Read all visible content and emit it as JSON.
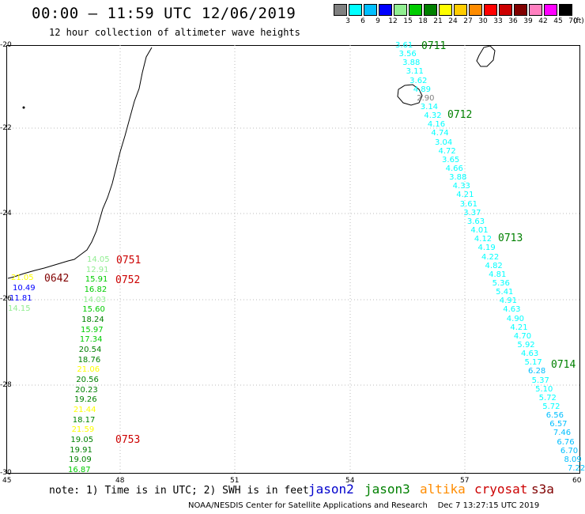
{
  "header": {
    "title": "00:00 – 11:59 UTC 12/06/2019",
    "subtitle": "12 hour collection of altimeter wave heights"
  },
  "scale": {
    "colors": [
      "#808080",
      "#00ffff",
      "#00bfff",
      "#0000ff",
      "#90ee90",
      "#00cc00",
      "#008000",
      "#ffff00",
      "#ffcc00",
      "#ff8c00",
      "#ff0000",
      "#cc0000",
      "#800000",
      "#ff80c0",
      "#ff00ff",
      "#000000"
    ],
    "labels": [
      "3",
      "6",
      "9",
      "12",
      "15",
      "18",
      "21",
      "24",
      "27",
      "30",
      "33",
      "36",
      "39",
      "42",
      "45",
      "70"
    ],
    "unit": "(ft)"
  },
  "axes": {
    "lat_labels": [
      "-20",
      "-22",
      "-24",
      "-26",
      "-28",
      "-30"
    ],
    "lon_labels": [
      "45",
      "48",
      "51",
      "54",
      "57",
      "60"
    ]
  },
  "passes": [
    {
      "id": "0711",
      "color": "#008000"
    },
    {
      "id": "0712",
      "color": "#008000"
    },
    {
      "id": "0713",
      "color": "#008000"
    },
    {
      "id": "0714",
      "color": "#008000"
    },
    {
      "id": "0751",
      "color": "#cc0000"
    },
    {
      "id": "0752",
      "color": "#cc0000"
    },
    {
      "id": "0753",
      "color": "#cc0000"
    },
    {
      "id": "0642",
      "color": "#800000"
    }
  ],
  "waves_east": [
    "3.61",
    "3.56",
    "3.88",
    "3.11",
    "3.62",
    "4.89",
    "2.90",
    "3.14",
    "4.32",
    "4.16",
    "4.74",
    "3.04",
    "4.72",
    "3.65",
    "4.66",
    "3.88",
    "4.33",
    "4.21",
    "3.61",
    "3.37",
    "3.63",
    "4.01",
    "4.12",
    "4.19",
    "4.22",
    "4.82",
    "4.81",
    "5.36",
    "5.41",
    "4.91",
    "4.63",
    "4.90",
    "4.21",
    "4.70",
    "5.92",
    "4.63",
    "5.17",
    "6.28",
    "5.37",
    "5.10",
    "5.72",
    "5.72",
    "6.56",
    "6.57",
    "7.46",
    "6.76",
    "6.70",
    "8.09",
    "7.22"
  ],
  "waves_west": [
    "14.05",
    "12.91",
    "15.91",
    "16.82",
    "14.03",
    "15.60",
    "18.24",
    "15.97",
    "17.34",
    "20.54",
    "18.76",
    "21.06",
    "20.56",
    "20.23",
    "19.26",
    "21.44",
    "18.17",
    "21.59",
    "19.05",
    "19.91",
    "19.09",
    "16.87"
  ],
  "waves_coast": [
    "21.05",
    "10.49",
    "11.81",
    "14.15"
  ],
  "note": "note: 1) Time is in UTC; 2) SWH is in feet",
  "satellites": [
    {
      "name": "jason2",
      "color": "#0000cc"
    },
    {
      "name": "jason3",
      "color": "#008000"
    },
    {
      "name": "altika",
      "color": "#ff8c00"
    },
    {
      "name": "cryosat",
      "color": "#cc0000"
    },
    {
      "name": "s3a",
      "color": "#800000"
    }
  ],
  "credit": "NOAA/NESDIS Center for Satellite Applications and Research",
  "timestamp": "Dec  7 13:27:15 UTC 2019"
}
